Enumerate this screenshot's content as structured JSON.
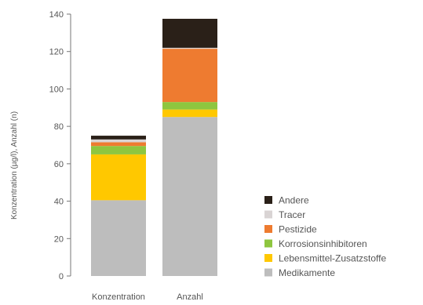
{
  "chart_data": {
    "type": "bar",
    "stacked": true,
    "categories": [
      "Konzentration",
      "Anzahl"
    ],
    "ylabel": "Konzentration (µg/l), Anzahl (n)",
    "ylim": [
      0,
      140
    ],
    "yticks": [
      0,
      20,
      40,
      60,
      80,
      100,
      120,
      140
    ],
    "grid": false,
    "legend_position": "right",
    "series": [
      {
        "name": "Medikamente",
        "color": "#bdbdbd",
        "values": [
          40.5,
          85
        ]
      },
      {
        "name": "Lebensmittel-Zusatzstoffe",
        "color": "#ffc800",
        "values": [
          24.5,
          4
        ]
      },
      {
        "name": "Korrosionsinhibitoren",
        "color": "#8ec63f",
        "values": [
          4.5,
          4
        ]
      },
      {
        "name": "Pestizide",
        "color": "#ee7b30",
        "values": [
          2,
          28.5
        ]
      },
      {
        "name": "Tracer",
        "color": "#d9d4d4",
        "values": [
          1.5,
          0.5
        ]
      },
      {
        "name": "Andere",
        "color": "#2a2018",
        "values": [
          2,
          15.5
        ]
      }
    ]
  }
}
